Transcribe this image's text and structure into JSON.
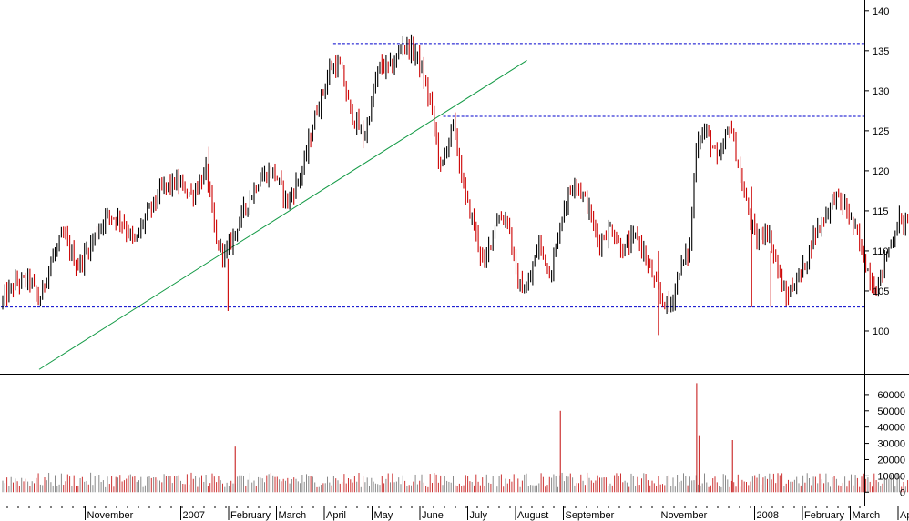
{
  "chart_data": [
    {
      "type": "candlestick",
      "panel": "price",
      "y_axis_side": "right",
      "ylim": [
        95,
        141
      ],
      "yticks": [
        100,
        105,
        110,
        115,
        120,
        125,
        130,
        135,
        140
      ],
      "colors": {
        "up": "#000000",
        "down": "#cc0000",
        "reference_lines": "#0000cc",
        "trendline": "#119944"
      },
      "horizontal_lines": [
        {
          "y": 103.0,
          "x_start": 0.0
        },
        {
          "y": 126.8,
          "x_start": 9.25
        },
        {
          "y": 135.9,
          "x_start": 6.95
        }
      ],
      "trendline": {
        "from": [
          0.8,
          95.2
        ],
        "to": [
          11.0,
          133.8
        ]
      },
      "series": [
        {
          "points": [
            {
              "x": 0.0,
              "y": 103.5
            },
            {
              "x": 0.3,
              "y": 106.0
            },
            {
              "x": 0.6,
              "y": 106.5
            },
            {
              "x": 0.8,
              "y": 103.5
            },
            {
              "x": 1.0,
              "y": 108.0
            },
            {
              "x": 1.3,
              "y": 112.0
            },
            {
              "x": 1.6,
              "y": 108.0
            },
            {
              "x": 1.8,
              "y": 110.0
            },
            {
              "x": 2.2,
              "y": 114.5
            },
            {
              "x": 2.5,
              "y": 114.0
            },
            {
              "x": 2.8,
              "y": 111.0
            },
            {
              "x": 3.0,
              "y": 114.0
            },
            {
              "x": 3.4,
              "y": 118.0
            },
            {
              "x": 3.7,
              "y": 118.5
            },
            {
              "x": 4.0,
              "y": 117.0
            },
            {
              "x": 4.3,
              "y": 120.0
            },
            {
              "x": 4.5,
              "y": 111.0
            },
            {
              "x": 4.7,
              "y": 109.5
            },
            {
              "x": 5.0,
              "y": 114.0
            },
            {
              "x": 5.4,
              "y": 119.0
            },
            {
              "x": 5.7,
              "y": 120.0
            },
            {
              "x": 6.0,
              "y": 116.0
            },
            {
              "x": 6.3,
              "y": 120.0
            },
            {
              "x": 6.6,
              "y": 127.5
            },
            {
              "x": 6.9,
              "y": 133.0
            },
            {
              "x": 7.1,
              "y": 133.0
            },
            {
              "x": 7.3,
              "y": 127.5
            },
            {
              "x": 7.6,
              "y": 124.0
            },
            {
              "x": 7.9,
              "y": 133.0
            },
            {
              "x": 8.2,
              "y": 133.0
            },
            {
              "x": 8.4,
              "y": 136.0
            },
            {
              "x": 8.7,
              "y": 134.5
            },
            {
              "x": 9.0,
              "y": 128.0
            },
            {
              "x": 9.2,
              "y": 120.0
            },
            {
              "x": 9.45,
              "y": 126.0
            },
            {
              "x": 9.7,
              "y": 117.0
            },
            {
              "x": 9.9,
              "y": 113.0
            },
            {
              "x": 10.1,
              "y": 108.0
            },
            {
              "x": 10.35,
              "y": 114.0
            },
            {
              "x": 10.6,
              "y": 114.0
            },
            {
              "x": 10.8,
              "y": 106.0
            },
            {
              "x": 11.0,
              "y": 105.0
            },
            {
              "x": 11.25,
              "y": 111.0
            },
            {
              "x": 11.5,
              "y": 107.0
            },
            {
              "x": 11.75,
              "y": 115.0
            },
            {
              "x": 12.0,
              "y": 119.0
            },
            {
              "x": 12.25,
              "y": 116.0
            },
            {
              "x": 12.5,
              "y": 111.0
            },
            {
              "x": 12.75,
              "y": 113.0
            },
            {
              "x": 13.0,
              "y": 110.0
            },
            {
              "x": 13.3,
              "y": 112.0
            },
            {
              "x": 13.55,
              "y": 108.0
            },
            {
              "x": 13.8,
              "y": 104.0
            },
            {
              "x": 14.0,
              "y": 103.0
            },
            {
              "x": 14.2,
              "y": 108.0
            },
            {
              "x": 14.4,
              "y": 110.0
            },
            {
              "x": 14.55,
              "y": 124.0
            },
            {
              "x": 14.75,
              "y": 125.0
            },
            {
              "x": 15.0,
              "y": 121.0
            },
            {
              "x": 15.25,
              "y": 126.0
            },
            {
              "x": 15.5,
              "y": 118.0
            },
            {
              "x": 15.8,
              "y": 111.0
            },
            {
              "x": 16.0,
              "y": 113.0
            },
            {
              "x": 16.2,
              "y": 109.0
            },
            {
              "x": 16.4,
              "y": 104.0
            },
            {
              "x": 16.6,
              "y": 106.0
            },
            {
              "x": 16.8,
              "y": 108.0
            },
            {
              "x": 17.0,
              "y": 112.0
            },
            {
              "x": 17.2,
              "y": 114.0
            },
            {
              "x": 17.45,
              "y": 117.0
            },
            {
              "x": 17.7,
              "y": 115.0
            },
            {
              "x": 17.9,
              "y": 112.0
            },
            {
              "x": 18.1,
              "y": 108.0
            },
            {
              "x": 18.3,
              "y": 105.0
            },
            {
              "x": 18.55,
              "y": 110.0
            },
            {
              "x": 18.8,
              "y": 114.0
            },
            {
              "x": 19.0,
              "y": 113.0
            },
            {
              "x": 19.3,
              "y": 109.0
            }
          ]
        }
      ],
      "xticks": [
        {
          "x": 1.0,
          "label": "November"
        },
        {
          "x": 3.0,
          "label": "2007"
        },
        {
          "x": 4.0,
          "label": "February"
        },
        {
          "x": 5.0,
          "label": "March"
        },
        {
          "x": 6.0,
          "label": "April"
        },
        {
          "x": 7.0,
          "label": "May"
        },
        {
          "x": 8.0,
          "label": "June"
        },
        {
          "x": 9.0,
          "label": "July"
        },
        {
          "x": 10.0,
          "label": "August"
        },
        {
          "x": 11.0,
          "label": "September"
        },
        {
          "x": 13.0,
          "label": "November"
        },
        {
          "x": 15.0,
          "label": "2008"
        },
        {
          "x": 16.0,
          "label": "February"
        },
        {
          "x": 17.0,
          "label": "March"
        },
        {
          "x": 18.0,
          "label": "April"
        }
      ]
    },
    {
      "type": "bar",
      "panel": "volume",
      "y_axis_side": "right",
      "ylim": [
        -6000,
        70000
      ],
      "yticks": [
        0,
        10000,
        20000,
        30000,
        40000,
        50000,
        60000
      ],
      "spikes": [
        {
          "x": 4.9,
          "value": 28000
        },
        {
          "x": 11.7,
          "value": 50000
        },
        {
          "x": 14.55,
          "value": 67000
        },
        {
          "x": 14.6,
          "value": 35000
        },
        {
          "x": 15.3,
          "value": 32000
        }
      ]
    }
  ]
}
